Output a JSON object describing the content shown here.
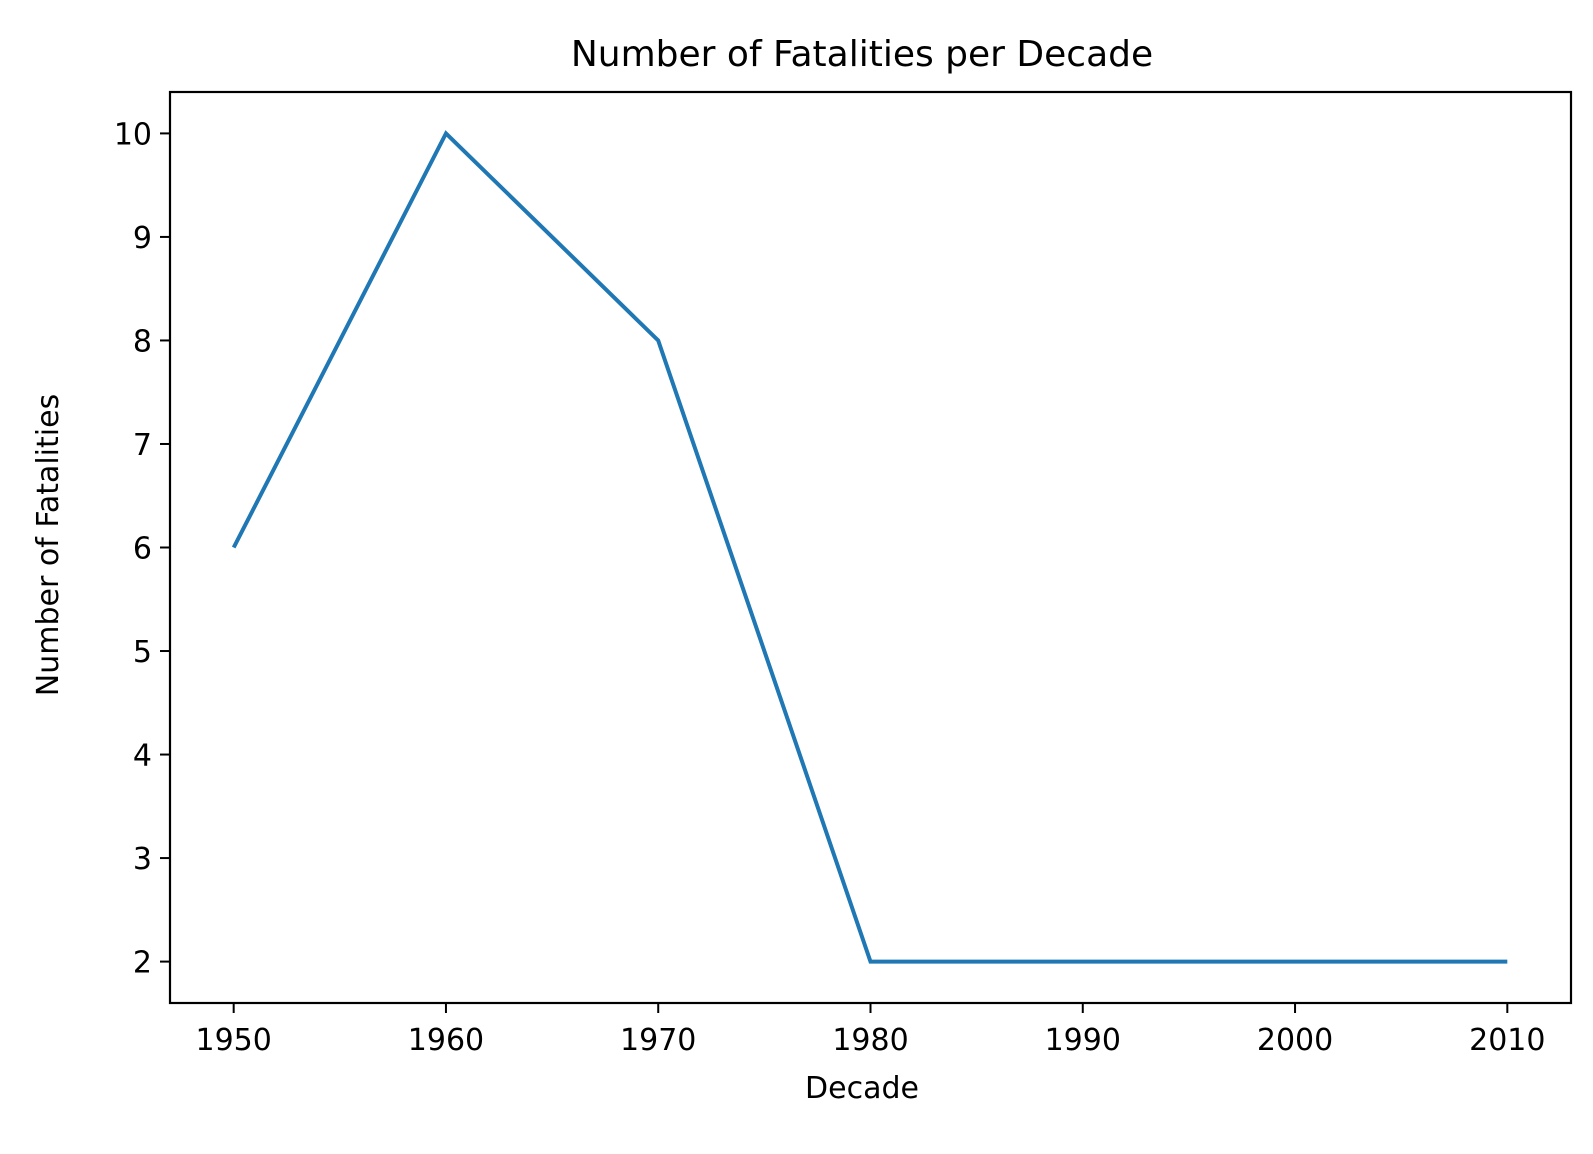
{
  "chart_data": {
    "type": "line",
    "title": "Number of Fatalities per Decade",
    "xlabel": "Decade",
    "ylabel": "Number of Fatalities",
    "x": [
      1950,
      1960,
      1970,
      1980,
      1990,
      2000,
      2010
    ],
    "series": [
      {
        "values": [
          6,
          10,
          8,
          2,
          2,
          2,
          2
        ],
        "color": "#1f77b4"
      }
    ],
    "xticks": [
      1950,
      1960,
      1970,
      1980,
      1990,
      2000,
      2010
    ],
    "yticks": [
      2,
      3,
      4,
      5,
      6,
      7,
      8,
      9,
      10
    ],
    "xlim": [
      1947,
      2013
    ],
    "ylim": [
      1.6,
      10.4
    ],
    "grid": false,
    "legend": "none"
  }
}
